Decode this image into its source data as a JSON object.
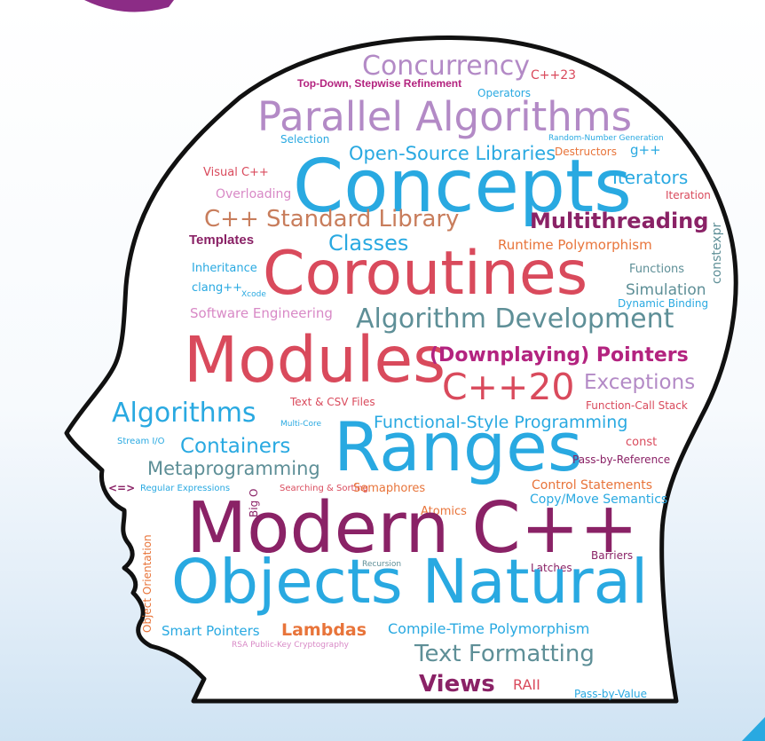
{
  "colors": {
    "purple": "#b38ac6",
    "magenta": "#b3237f",
    "cyan": "#29a9e1",
    "red": "#d94a5c",
    "teal": "#5e8f97",
    "brown": "#c87d5c",
    "orange": "#e8743a",
    "plum": "#8a2266",
    "pink": "#d889c6",
    "outline": "#111111",
    "arc": "#8c2c86",
    "corner": "#29a9e1"
  },
  "words": {
    "concurrency": "Concurrency",
    "top_down": "Top-Down, Stepwise Refinement",
    "cpp23": "C++23",
    "operators": "Operators",
    "parallel_algorithms": "Parallel Algorithms",
    "selection": "Selection",
    "random_number": "Random-Number Generation",
    "open_source": "Open-Source Libraries",
    "destructors": "Destructors",
    "gpp": "g++",
    "visual_cpp": "Visual C++",
    "concepts": "Concepts",
    "iterators": "Iterators",
    "overloading": "Overloading",
    "iteration": "Iteration",
    "std_library": "C++ Standard Library",
    "multithreading": "Multithreading",
    "templates": "Templates",
    "classes": "Classes",
    "runtime_poly": "Runtime Polymorphism",
    "constexpr": "constexpr",
    "inheritance": "Inheritance",
    "coroutines": "Coroutines",
    "functions": "Functions",
    "clang": "clang++",
    "xcode": "Xcode",
    "simulation": "Simulation",
    "dynamic_binding": "Dynamic Binding",
    "software_eng": "Software Engineering",
    "algorithm_dev": "Algorithm Development",
    "modules": "Modules",
    "downplaying": "(Downplaying) Pointers",
    "text_csv": "Text & CSV Files",
    "cpp20": "C++20",
    "exceptions": "Exceptions",
    "algorithms": "Algorithms",
    "function_call_stack": "Function-Call Stack",
    "multi_core": "Multi-Core",
    "functional_style": "Functional-Style Programming",
    "stream_io": "Stream I/O",
    "containers": "Containers",
    "ranges": "Ranges",
    "const": "const",
    "metaprogramming": "Metaprogramming",
    "pass_by_ref": "Pass-by-Reference",
    "spaceship": "<=>",
    "regex": "Regular Expressions",
    "searching": "Searching & Sorting",
    "semaphores": "Semaphores",
    "control_statements": "Control Statements",
    "big_o": "Big O",
    "copy_move": "Copy/Move Semantics",
    "atomics": "Atomics",
    "modern_cpp": "Modern C++",
    "object_orientation": "Object Orientation",
    "recursion": "Recursion",
    "barriers": "Barriers",
    "latches": "Latches",
    "objects_natural": "Objects Natural",
    "smart_pointers": "Smart Pointers",
    "lambdas": "Lambdas",
    "compile_time": "Compile-Time Polymorphism",
    "rsa": "RSA Public-Key Cryptography",
    "text_formatting": "Text Formatting",
    "views": "Views",
    "raii": "RAII",
    "pass_by_value": "Pass-by-Value"
  }
}
